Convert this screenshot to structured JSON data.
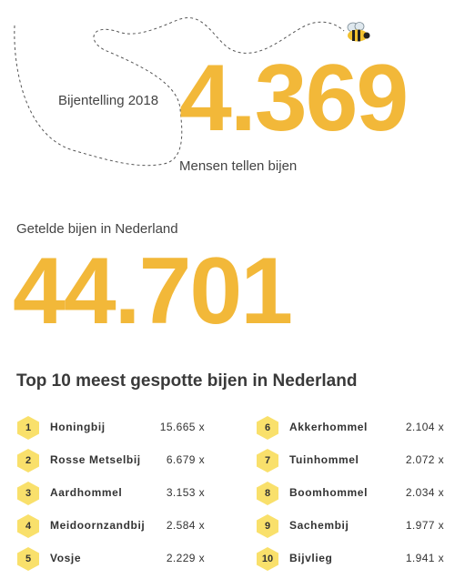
{
  "header": {
    "event_label": "Bijentelling 2018",
    "participants": "4.369",
    "participants_caption": "Mensen tellen bijen"
  },
  "totals": {
    "label": "Getelde bijen in Nederland",
    "value": "44.701"
  },
  "top10": {
    "title": "Top 10 meest gespotte bijen in Nederland",
    "items": [
      {
        "rank": "1",
        "name": "Honingbij",
        "count": "15.665 x"
      },
      {
        "rank": "2",
        "name": "Rosse Metselbij",
        "count": "6.679 x"
      },
      {
        "rank": "3",
        "name": "Aardhommel",
        "count": "3.153 x"
      },
      {
        "rank": "4",
        "name": "Meidoornzandbij",
        "count": "2.584 x"
      },
      {
        "rank": "5",
        "name": "Vosje",
        "count": "2.229 x"
      },
      {
        "rank": "6",
        "name": "Akkerhommel",
        "count": "2.104 x"
      },
      {
        "rank": "7",
        "name": "Tuinhommel",
        "count": "2.072 x"
      },
      {
        "rank": "8",
        "name": "Boomhommel",
        "count": "2.034 x"
      },
      {
        "rank": "9",
        "name": "Sachembij",
        "count": "1.977 x"
      },
      {
        "rank": "10",
        "name": "Bijvlieg",
        "count": "1.941 x"
      }
    ]
  },
  "colors": {
    "accent": "#f2b839",
    "hexagon": "#f9e06b",
    "text": "#333333"
  },
  "icons": {
    "bee": "bee-icon",
    "rank": "hexagon-icon"
  }
}
